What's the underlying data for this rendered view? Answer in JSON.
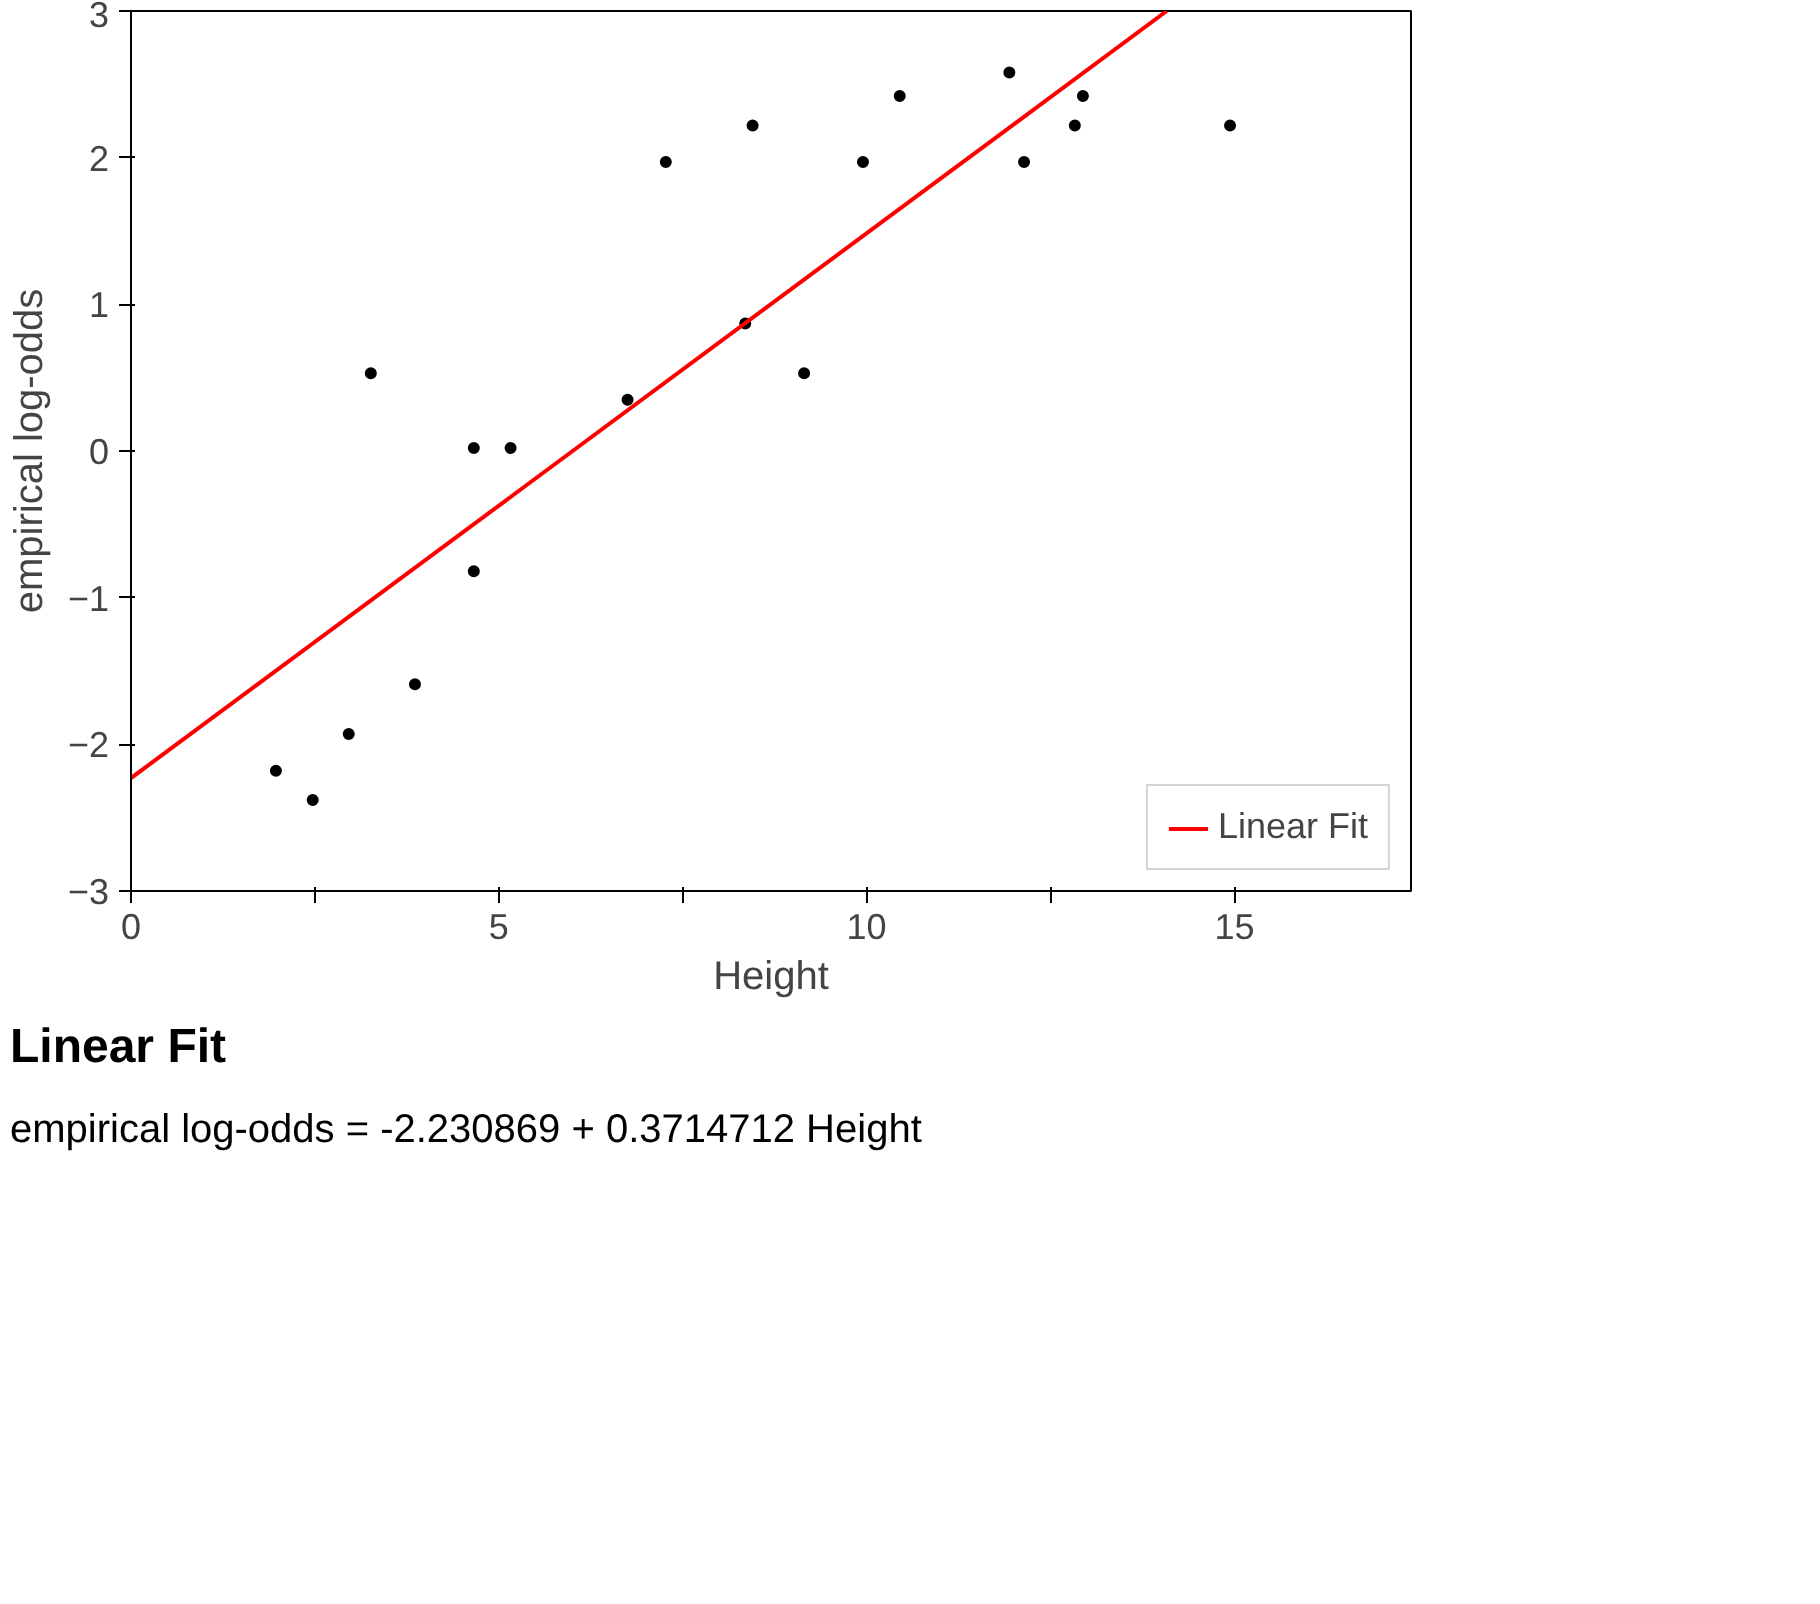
{
  "chart_data": {
    "type": "scatter",
    "xlabel": "Height",
    "ylabel": "empirical log-odds",
    "xlim": [
      0,
      17.4
    ],
    "ylim": [
      -3,
      3
    ],
    "xticks": [
      0,
      {
        "value": 2.5,
        "label": null
      },
      5,
      {
        "value": 7.5,
        "label": null
      },
      10,
      {
        "value": 12.5,
        "label": null
      },
      15
    ],
    "yticks": [
      -3,
      -2,
      -1,
      0,
      1,
      2,
      3
    ],
    "grid": false,
    "legend": "bottom right",
    "marker": "circle",
    "series": [
      {
        "color": "#000000",
        "x": [
          1.97,
          2.47,
          2.96,
          3.26,
          3.86,
          4.66,
          4.66,
          5.16,
          6.75,
          7.27,
          8.35,
          8.45,
          9.15,
          9.95,
          10.45,
          11.94,
          12.14,
          12.83,
          12.94,
          14.94
        ],
        "values": [
          -2.18,
          -2.38,
          -1.93,
          0.53,
          -1.59,
          0.02,
          -0.82,
          0.02,
          0.35,
          1.97,
          0.87,
          2.22,
          0.53,
          1.97,
          2.42,
          2.58,
          1.97,
          2.22,
          2.42,
          2.22
        ]
      },
      {
        "type": "line",
        "name": "Linear Fit",
        "color": "#ff0000",
        "line_style": "solid",
        "marker": "none",
        "x": [
          0,
          14.08
        ],
        "values": [
          -2.23,
          3
        ]
      }
    ],
    "annotations": [
      "Linear Fit",
      "empirical log-odds = -2.230869 + 0.3714712 Height"
    ]
  }
}
